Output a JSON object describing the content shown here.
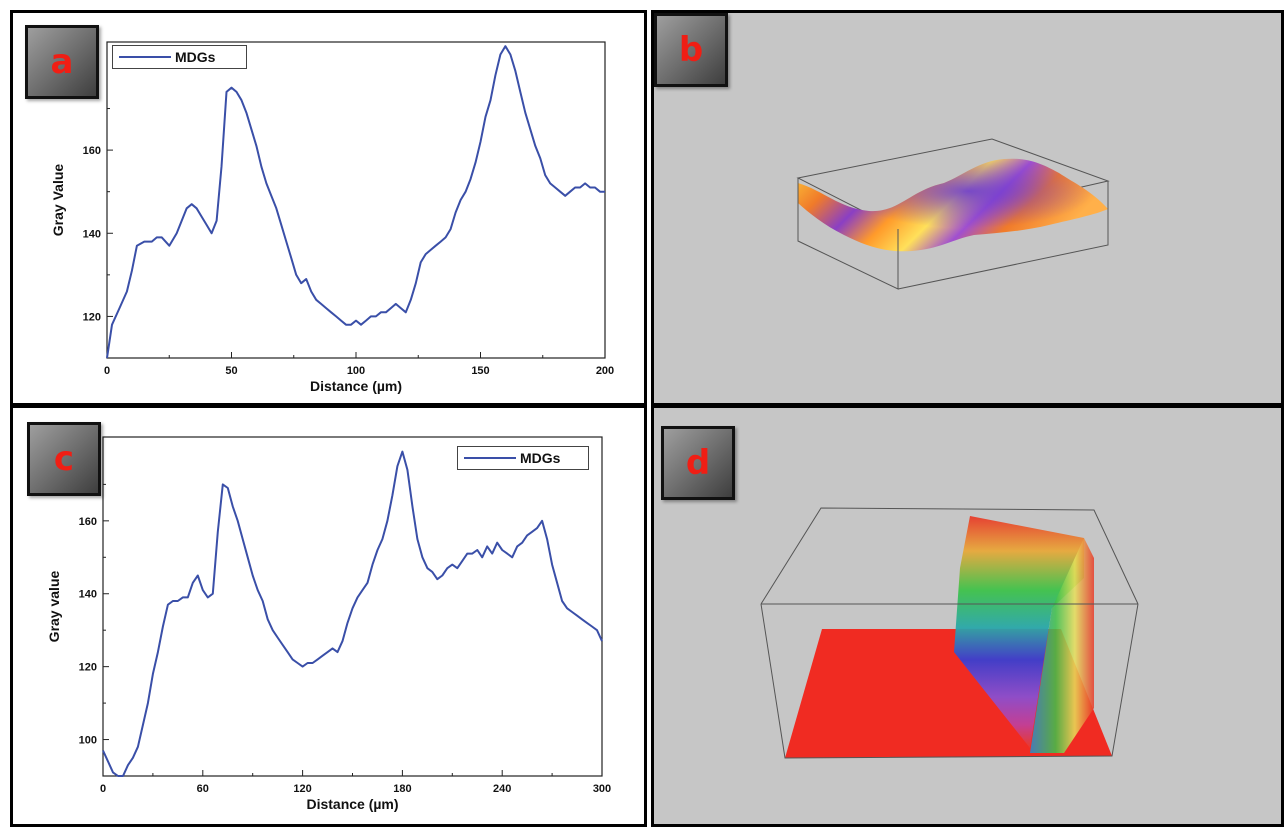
{
  "panels": {
    "a": {
      "label": "a"
    },
    "b": {
      "label": "b"
    },
    "c": {
      "label": "c"
    },
    "d": {
      "label": "d"
    }
  },
  "colors": {
    "line": "#3a4fa8",
    "label": "#f01e14",
    "render_bg": "#c6c6c6",
    "plane_red": "#f02b22"
  },
  "chart_data": [
    {
      "panel": "a",
      "type": "line",
      "xlabel": "Distance (µm)",
      "ylabel": "Gray Value",
      "xlim": [
        0,
        200
      ],
      "ylim": [
        110,
        186
      ],
      "xticks": [
        0,
        50,
        100,
        150,
        200
      ],
      "yticks": [
        120,
        140,
        160
      ],
      "legend": "top-left",
      "grid": false,
      "series": [
        {
          "name": "MDGs",
          "x": [
            0,
            2,
            5,
            8,
            10,
            12,
            15,
            18,
            20,
            22,
            25,
            28,
            30,
            32,
            34,
            36,
            38,
            40,
            42,
            44,
            46,
            48,
            50,
            52,
            54,
            56,
            58,
            60,
            62,
            64,
            66,
            68,
            70,
            72,
            74,
            76,
            78,
            80,
            82,
            84,
            86,
            88,
            90,
            92,
            94,
            96,
            98,
            100,
            102,
            104,
            106,
            108,
            110,
            112,
            114,
            116,
            118,
            120,
            122,
            124,
            126,
            128,
            130,
            132,
            134,
            136,
            138,
            140,
            142,
            144,
            146,
            148,
            150,
            152,
            154,
            156,
            158,
            160,
            162,
            164,
            166,
            168,
            170,
            172,
            174,
            176,
            178,
            180,
            182,
            184,
            186,
            188,
            190,
            192,
            194,
            196,
            198,
            200
          ],
          "y": [
            110,
            118,
            122,
            126,
            131,
            137,
            138,
            138,
            139,
            139,
            137,
            140,
            143,
            146,
            147,
            146,
            144,
            142,
            140,
            143,
            156,
            174,
            175,
            174,
            172,
            169,
            165,
            161,
            156,
            152,
            149,
            146,
            142,
            138,
            134,
            130,
            128,
            129,
            126,
            124,
            123,
            122,
            121,
            120,
            119,
            118,
            118,
            119,
            118,
            119,
            120,
            120,
            121,
            121,
            122,
            123,
            122,
            121,
            124,
            128,
            133,
            135,
            136,
            137,
            138,
            139,
            141,
            145,
            148,
            150,
            153,
            157,
            162,
            168,
            172,
            178,
            183,
            185,
            183,
            179,
            174,
            169,
            165,
            161,
            158,
            154,
            152,
            151,
            150,
            149,
            150,
            151,
            151,
            152,
            151,
            151,
            150,
            150
          ]
        }
      ]
    },
    {
      "panel": "c",
      "type": "line",
      "xlabel": "Distance (µm)",
      "ylabel": "Gray value",
      "xlim": [
        0,
        300
      ],
      "ylim": [
        90,
        183
      ],
      "xticks": [
        0,
        60,
        120,
        180,
        240,
        300
      ],
      "yticks": [
        100,
        120,
        140,
        160
      ],
      "legend": "top-right",
      "grid": false,
      "series": [
        {
          "name": "MDGs",
          "x": [
            0,
            3,
            6,
            9,
            12,
            15,
            18,
            21,
            24,
            27,
            30,
            33,
            36,
            39,
            42,
            45,
            48,
            51,
            54,
            57,
            60,
            63,
            66,
            69,
            72,
            75,
            78,
            81,
            84,
            87,
            90,
            93,
            96,
            99,
            102,
            105,
            108,
            111,
            114,
            117,
            120,
            123,
            126,
            129,
            132,
            135,
            138,
            141,
            144,
            147,
            150,
            153,
            156,
            159,
            162,
            165,
            168,
            171,
            174,
            177,
            180,
            183,
            186,
            189,
            192,
            195,
            198,
            201,
            204,
            207,
            210,
            213,
            216,
            219,
            222,
            225,
            228,
            231,
            234,
            237,
            240,
            243,
            246,
            249,
            252,
            255,
            258,
            261,
            264,
            267,
            270,
            273,
            276,
            279,
            282,
            285,
            288,
            291,
            294,
            297,
            300
          ],
          "y": [
            97,
            94,
            91,
            90,
            90,
            93,
            95,
            98,
            104,
            110,
            118,
            124,
            131,
            137,
            138,
            138,
            139,
            139,
            143,
            145,
            141,
            139,
            140,
            157,
            170,
            169,
            164,
            160,
            155,
            150,
            145,
            141,
            138,
            133,
            130,
            128,
            126,
            124,
            122,
            121,
            120,
            121,
            121,
            122,
            123,
            124,
            125,
            124,
            127,
            132,
            136,
            139,
            141,
            143,
            148,
            152,
            155,
            160,
            167,
            175,
            179,
            174,
            164,
            155,
            150,
            147,
            146,
            144,
            145,
            147,
            148,
            147,
            149,
            151,
            151,
            152,
            150,
            153,
            151,
            154,
            152,
            151,
            150,
            153,
            154,
            156,
            157,
            158,
            160,
            155,
            148,
            143,
            138,
            136,
            135,
            134,
            133,
            132,
            131,
            130,
            127
          ]
        }
      ]
    }
  ]
}
